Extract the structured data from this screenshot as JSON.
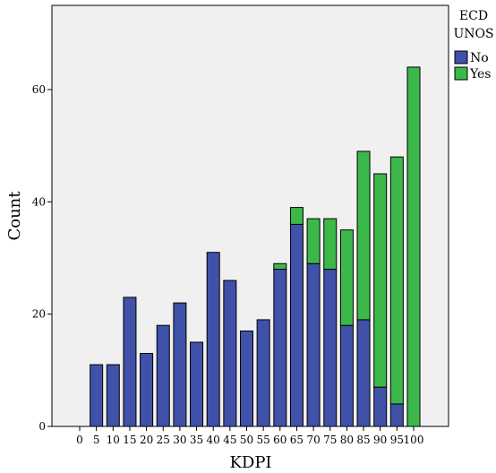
{
  "chart_data": {
    "type": "bar",
    "stacked": true,
    "xlabel": "KDPI",
    "ylabel": "Count",
    "categories": [
      "0",
      "5",
      "10",
      "15",
      "20",
      "25",
      "30",
      "35",
      "40",
      "45",
      "50",
      "55",
      "60",
      "65",
      "70",
      "75",
      "80",
      "85",
      "90",
      "95",
      "100"
    ],
    "series": [
      {
        "name": "No",
        "color": "#3f51a8",
        "values": [
          0,
          11,
          11,
          23,
          13,
          18,
          22,
          15,
          31,
          26,
          17,
          19,
          28,
          36,
          29,
          28,
          18,
          19,
          7,
          4,
          0
        ]
      },
      {
        "name": "Yes",
        "color": "#3cb84a",
        "values": [
          0,
          0,
          0,
          0,
          0,
          0,
          0,
          0,
          0,
          0,
          0,
          0,
          1,
          3,
          8,
          9,
          17,
          30,
          38,
          44,
          64
        ]
      }
    ],
    "ylim": [
      0,
      75
    ],
    "yticks": [
      0,
      20,
      40,
      60
    ],
    "grid": false,
    "plot_background": "#f0f0f0",
    "legend": {
      "title_lines": [
        "ECD",
        "UNOS"
      ],
      "position": "right"
    }
  }
}
